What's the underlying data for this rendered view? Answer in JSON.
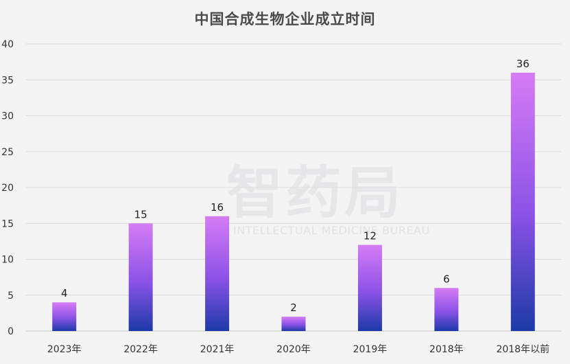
{
  "chart_data": {
    "type": "bar",
    "title": "中国合成生物企业成立时间",
    "categories": [
      "2023年",
      "2022年",
      "2021年",
      "2020年",
      "2019年",
      "2018年",
      "2018年以前"
    ],
    "values": [
      4,
      15,
      16,
      2,
      12,
      6,
      36
    ],
    "ylim": [
      0,
      40
    ],
    "yticks": [
      0,
      5,
      10,
      15,
      20,
      25,
      30,
      35,
      40
    ],
    "grid": true,
    "colors": {
      "bar_top": "#d67cf5",
      "bar_mid": "#8a52e6",
      "bar_bottom": "#1c3aa8"
    }
  },
  "watermark": {
    "text": "智药局",
    "subtext": "INTELLECTUAL MEDICINE BUREAU"
  }
}
